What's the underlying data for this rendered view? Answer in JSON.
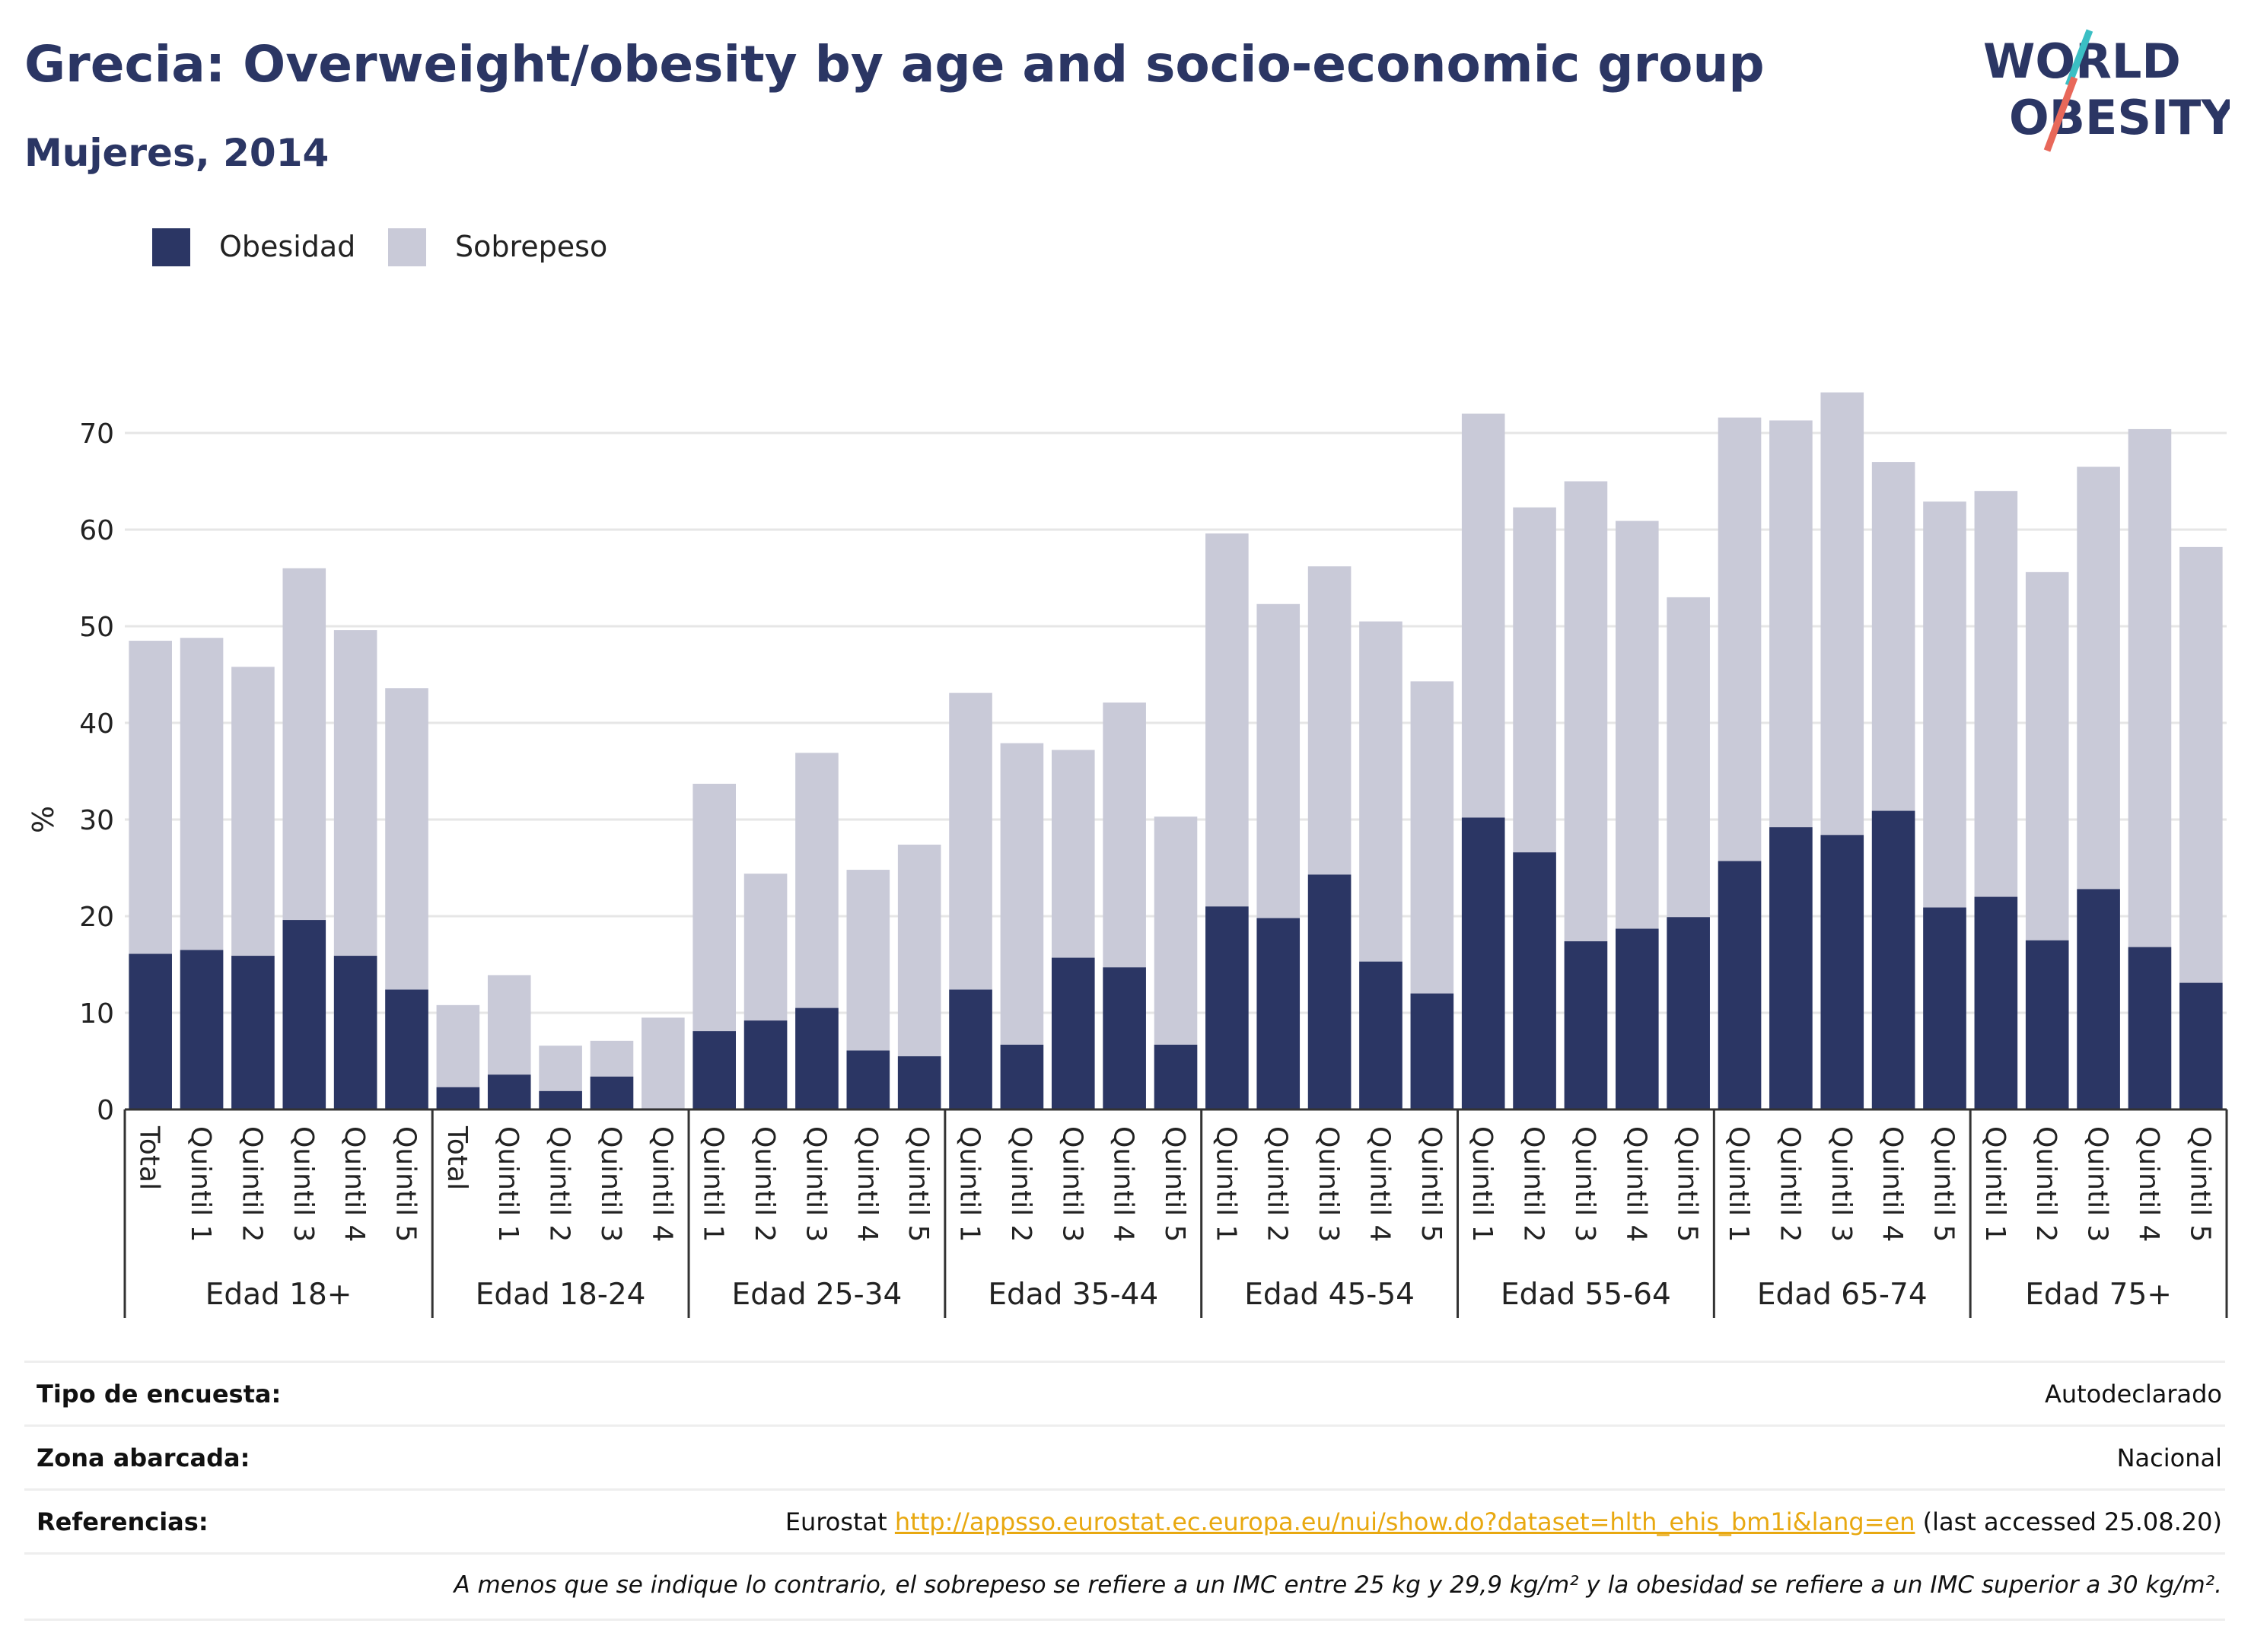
{
  "header": {
    "title": "Grecia: Overweight/obesity by age and socio-economic group",
    "subtitle": "Mujeres, 2014"
  },
  "logo": {
    "line1": "WORLD",
    "line2": "OBESITY"
  },
  "colors": {
    "obesity": "#2b3664",
    "overweight": "#c9cad8",
    "title": "#2b3664",
    "link": "#e8a810",
    "logo_teal": "#3bbfc4",
    "logo_coral": "#e8685a"
  },
  "legend": {
    "obesity_label": "Obesidad",
    "overweight_label": "Sobrepeso"
  },
  "chart_data": {
    "type": "bar",
    "stacked": false,
    "ylabel": "%",
    "ylim": [
      0,
      75
    ],
    "yticks": [
      0,
      10,
      20,
      30,
      40,
      50,
      60,
      70
    ],
    "grid": true,
    "legend_position": "top-left",
    "groups": [
      {
        "name": "Edad 18+",
        "categories": [
          "Total",
          "Quintil 1",
          "Quintil 2",
          "Quintil 3",
          "Quintil 4",
          "Quintil 5"
        ],
        "obesidad": [
          16.1,
          16.5,
          15.9,
          19.6,
          15.9,
          12.4
        ],
        "sobrepeso": [
          48.5,
          48.8,
          45.8,
          56.0,
          49.6,
          43.6
        ]
      },
      {
        "name": "Edad 18-24",
        "categories": [
          "Total",
          "Quintil 1",
          "Quintil 2",
          "Quintil 3",
          "Quintil 4"
        ],
        "obesidad": [
          2.3,
          3.6,
          1.9,
          3.4,
          0
        ],
        "sobrepeso": [
          10.8,
          13.9,
          6.6,
          7.1,
          9.5
        ]
      },
      {
        "name": "Edad 25-34",
        "categories": [
          "Quintil 1",
          "Quintil 2",
          "Quintil 3",
          "Quintil 4",
          "Quintil 5"
        ],
        "obesidad": [
          8.1,
          9.2,
          10.5,
          6.1,
          5.5
        ],
        "sobrepeso": [
          33.7,
          24.4,
          36.9,
          24.8,
          27.4
        ]
      },
      {
        "name": "Edad 35-44",
        "categories": [
          "Quintil 1",
          "Quintil 2",
          "Quintil 3",
          "Quintil 4",
          "Quintil 5"
        ],
        "obesidad": [
          12.4,
          6.7,
          15.7,
          14.7,
          6.7
        ],
        "sobrepeso": [
          43.1,
          37.9,
          37.2,
          42.1,
          30.3
        ]
      },
      {
        "name": "Edad 45-54",
        "categories": [
          "Quintil 1",
          "Quintil 2",
          "Quintil 3",
          "Quintil 4",
          "Quintil 5"
        ],
        "obesidad": [
          21.0,
          19.8,
          24.3,
          15.3,
          12.0
        ],
        "sobrepeso": [
          59.6,
          52.3,
          56.2,
          50.5,
          44.3
        ]
      },
      {
        "name": "Edad 55-64",
        "categories": [
          "Quintil 1",
          "Quintil 2",
          "Quintil 3",
          "Quintil 4",
          "Quintil 5"
        ],
        "obesidad": [
          30.2,
          26.6,
          17.4,
          18.7,
          19.9
        ],
        "sobrepeso": [
          72.0,
          62.3,
          65.0,
          60.9,
          53.0
        ]
      },
      {
        "name": "Edad 65-74",
        "categories": [
          "Quintil 1",
          "Quintil 2",
          "Quintil 3",
          "Quintil 4",
          "Quintil 5"
        ],
        "obesidad": [
          25.7,
          29.2,
          28.4,
          30.9,
          20.9
        ],
        "sobrepeso": [
          71.6,
          71.3,
          74.2,
          67.0,
          62.9
        ]
      },
      {
        "name": "Edad 75+",
        "categories": [
          "Quintil 1",
          "Quintil 2",
          "Quintil 3",
          "Quintil 4",
          "Quintil 5"
        ],
        "obesidad": [
          22.0,
          17.5,
          22.8,
          16.8,
          13.1
        ],
        "sobrepeso": [
          64.0,
          55.6,
          66.5,
          70.4,
          58.2
        ]
      }
    ]
  },
  "info": {
    "survey_key": "Tipo de encuesta:",
    "survey_val": "Autodeclarado",
    "area_key": "Zona abarcada:",
    "area_val": "Nacional",
    "ref_key": "Referencias:",
    "ref_prefix": "Eurostat ",
    "ref_link": "http://appsso.eurostat.ec.europa.eu/nui/show.do?dataset=hlth_ehis_bm1i&lang=en",
    "ref_suffix": " (last accessed 25.08.20)",
    "note": "A menos que se indique lo contrario, el sobrepeso se refiere a un IMC entre 25 kg y 29,9 kg/m² y la obesidad se refiere a un IMC superior a 30 kg/m²."
  }
}
